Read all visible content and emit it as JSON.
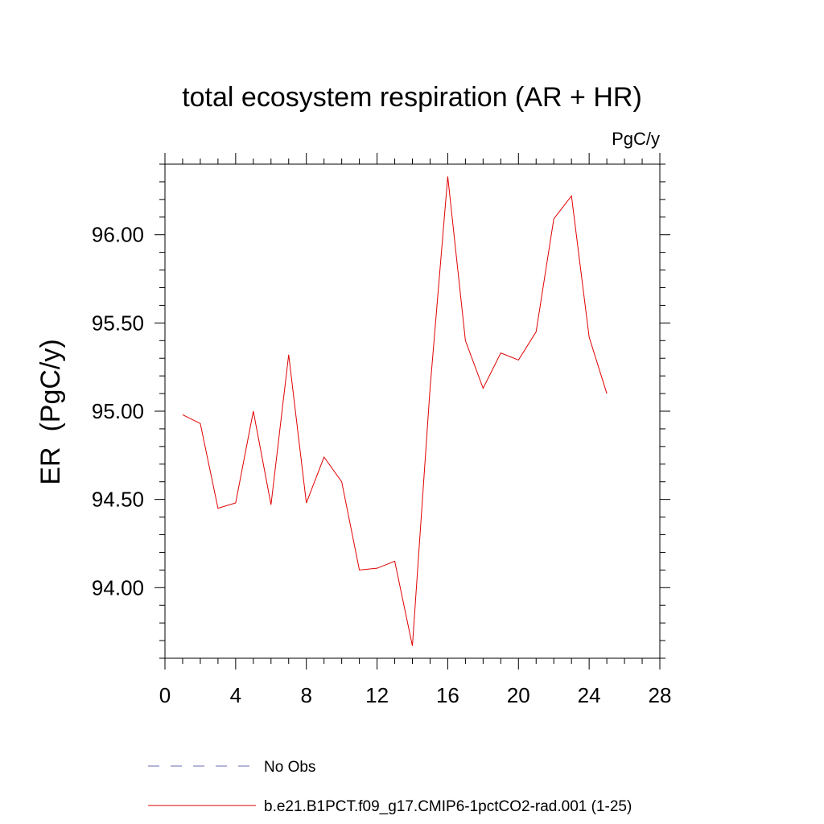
{
  "chart_data": {
    "type": "line",
    "title": "total ecosystem respiration (AR + HR)",
    "units": "PgC/y",
    "ylabel": "ER  (PgC/y)",
    "xlabel": "",
    "xlim": [
      0,
      28
    ],
    "ylim": [
      93.6,
      96.4
    ],
    "xticks": [
      0,
      4,
      8,
      12,
      16,
      20,
      24,
      28
    ],
    "yticks": [
      94.0,
      94.5,
      95.0,
      95.5,
      96.0
    ],
    "ytick_labels": [
      "94.00",
      "94.50",
      "95.00",
      "95.50",
      "96.00"
    ],
    "grid": false,
    "legend_position": "bottom",
    "x": [
      1,
      2,
      3,
      4,
      5,
      6,
      7,
      8,
      9,
      10,
      11,
      12,
      13,
      14,
      15,
      16,
      17,
      18,
      19,
      20,
      21,
      22,
      23,
      24,
      25
    ],
    "series": [
      {
        "name": "b.e21.B1PCT.f09_g17.CMIP6-1pctCO2-rad.001 (1-25)",
        "color": "#e00000",
        "dash": "solid",
        "values": [
          94.98,
          94.93,
          94.45,
          94.48,
          95.0,
          94.47,
          95.32,
          94.48,
          94.74,
          94.6,
          94.1,
          94.11,
          94.15,
          93.67,
          95.13,
          96.33,
          95.4,
          95.13,
          95.33,
          95.29,
          95.45,
          96.09,
          96.22,
          95.42,
          95.1
        ]
      }
    ],
    "legend": [
      {
        "label": "No Obs",
        "color": "#6a6ab0",
        "dash": "dashed"
      },
      {
        "label": "b.e21.B1PCT.f09_g17.CMIP6-1pctCO2-rad.001 (1-25)",
        "color": "#e00000",
        "dash": "solid"
      }
    ]
  }
}
